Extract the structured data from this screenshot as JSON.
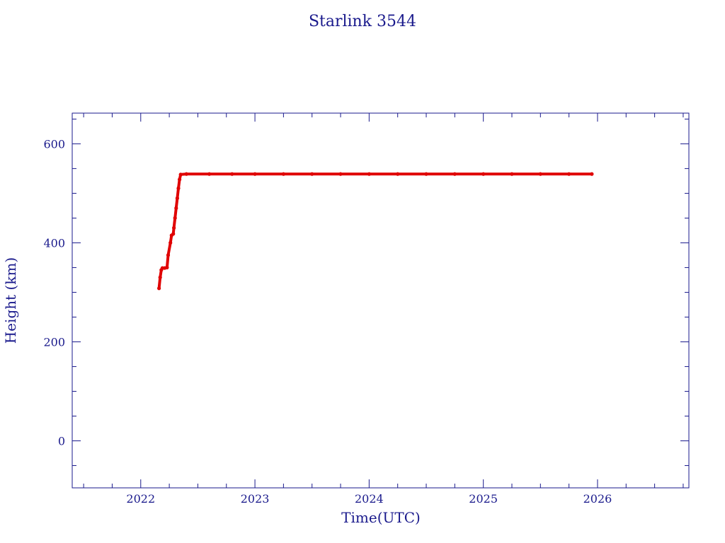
{
  "chart_data": {
    "type": "scatter",
    "title": "Starlink 3544",
    "xlabel": "Time(UTC)",
    "ylabel": "Height (km)",
    "xlim": [
      2021.4,
      2026.8
    ],
    "ylim": [
      -95,
      662
    ],
    "x_ticks": [
      2022,
      2023,
      2024,
      2025,
      2026
    ],
    "y_ticks": [
      0,
      200,
      400,
      600
    ],
    "grid": false,
    "legend": "none",
    "colors": {
      "frame": "#1a1a8c",
      "marker": "#e00000",
      "trace": "#2a9fa0"
    },
    "series": [
      {
        "points": [
          [
            2022.16,
            308
          ],
          [
            2022.17,
            330
          ],
          [
            2022.18,
            345
          ],
          [
            2022.19,
            349
          ],
          [
            2022.21,
            349
          ],
          [
            2022.23,
            350
          ],
          [
            2022.24,
            375
          ],
          [
            2022.26,
            400
          ],
          [
            2022.27,
            415
          ],
          [
            2022.285,
            418
          ],
          [
            2022.29,
            430
          ],
          [
            2022.3,
            450
          ],
          [
            2022.31,
            470
          ],
          [
            2022.32,
            490
          ],
          [
            2022.33,
            510
          ],
          [
            2022.34,
            528
          ],
          [
            2022.35,
            538
          ],
          [
            2022.4,
            539
          ],
          [
            2022.6,
            539
          ],
          [
            2022.8,
            539
          ],
          [
            2023.0,
            539
          ],
          [
            2023.25,
            539
          ],
          [
            2023.5,
            539
          ],
          [
            2023.75,
            539
          ],
          [
            2024.0,
            539
          ],
          [
            2024.25,
            539
          ],
          [
            2024.5,
            539
          ],
          [
            2024.75,
            539
          ],
          [
            2025.0,
            539
          ],
          [
            2025.25,
            539
          ],
          [
            2025.5,
            539
          ],
          [
            2025.75,
            539
          ],
          [
            2025.95,
            539
          ]
        ]
      }
    ]
  }
}
